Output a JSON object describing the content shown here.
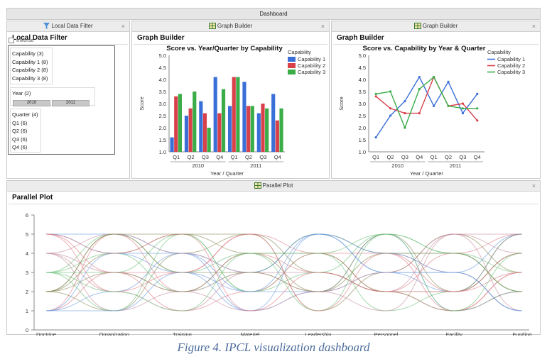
{
  "dashboard": {
    "title": "Dashboard"
  },
  "filter_panel": {
    "header": "Local Data Filter",
    "title": "Local Data Filter",
    "inverse_label": "Inverse",
    "capability_group": [
      "Capability (3)",
      "Capability 1 (8)",
      "Capability 2 (8)",
      "Capability 3 (8)"
    ],
    "year_group": {
      "label": "Year (2)",
      "options": [
        "2010",
        "2011"
      ]
    },
    "quarter_group": [
      "Quarter (4)",
      "Q1 (6)",
      "Q2 (6)",
      "Q3 (6)",
      "Q4 (6)"
    ]
  },
  "close_glyph": "×",
  "graph1": {
    "header": "Graph Builder",
    "title": "Graph Builder"
  },
  "graph2": {
    "header": "Graph Builder",
    "title": "Graph Builder"
  },
  "parallel": {
    "header": "Parallel Plot",
    "title": "Parallel Plot"
  },
  "caption": "Figure 4. IPCL visualization dashboard",
  "colors": {
    "cap1": "#3b6fd8",
    "cap2": "#d8404a",
    "cap3": "#3aac48",
    "header_bg": "#ececec"
  },
  "chart_data": [
    {
      "type": "bar",
      "title": "Score vs. Year/Quarter by Capability",
      "xlabel": "Year / Quarter",
      "ylabel": "Score",
      "ylim": [
        1.0,
        5.0
      ],
      "yticks": [
        "1.0",
        "1.5",
        "2.0",
        "2.5",
        "3.0",
        "3.5",
        "4.0",
        "4.5",
        "5.0"
      ],
      "categories": [
        "Q1",
        "Q2",
        "Q3",
        "Q4",
        "Q1",
        "Q2",
        "Q3",
        "Q4"
      ],
      "groups": [
        "2010",
        "2011"
      ],
      "legend_title": "Capability",
      "legend_position": "right",
      "series": [
        {
          "name": "Capability 1",
          "values": [
            1.6,
            2.5,
            3.1,
            4.1,
            2.9,
            3.9,
            2.6,
            3.4
          ]
        },
        {
          "name": "Capability 2",
          "values": [
            3.3,
            2.8,
            2.6,
            2.6,
            4.1,
            2.9,
            3.0,
            2.3
          ]
        },
        {
          "name": "Capability 3",
          "values": [
            3.4,
            3.5,
            2.0,
            3.6,
            4.1,
            2.9,
            2.8,
            2.8
          ]
        }
      ]
    },
    {
      "type": "line",
      "title": "Score vs. Capability by Year & Quarter",
      "xlabel": "Year / Quarter",
      "ylabel": "Score",
      "ylim": [
        1.0,
        5.0
      ],
      "yticks": [
        "1.0",
        "1.5",
        "2.0",
        "2.5",
        "3.0",
        "3.5",
        "4.0",
        "4.5",
        "5.0"
      ],
      "categories": [
        "Q1",
        "Q2",
        "Q3",
        "Q4",
        "Q1",
        "Q2",
        "Q3",
        "Q4"
      ],
      "groups": [
        "2010",
        "2011"
      ],
      "legend_title": "Capability",
      "legend_position": "right",
      "series": [
        {
          "name": "Capability 1",
          "values": [
            1.6,
            2.5,
            3.1,
            4.1,
            2.9,
            3.9,
            2.6,
            3.4
          ]
        },
        {
          "name": "Capability 2",
          "values": [
            3.3,
            2.8,
            2.6,
            2.6,
            4.1,
            2.9,
            3.0,
            2.3
          ]
        },
        {
          "name": "Capability 3",
          "values": [
            3.4,
            3.5,
            2.0,
            3.6,
            4.1,
            2.9,
            2.8,
            2.8
          ]
        }
      ]
    },
    {
      "type": "parallel",
      "title": "Parallel Plot",
      "axes": [
        "Doctrine",
        "Organization",
        "Training",
        "Materiel",
        "Leadership",
        "Personnel",
        "Facility",
        "Funding"
      ],
      "ylim": [
        0,
        6
      ],
      "yticks": [
        "0",
        "1",
        "2",
        "3",
        "4",
        "5",
        "6"
      ],
      "lines": [
        [
          5,
          4,
          3,
          1,
          2,
          5,
          1,
          2
        ],
        [
          1,
          5,
          2,
          4,
          3,
          2,
          4,
          5
        ],
        [
          3,
          3,
          5,
          2,
          4,
          1,
          2,
          4
        ],
        [
          2,
          1,
          4,
          5,
          1,
          3,
          5,
          3
        ],
        [
          4,
          2,
          1,
          3,
          5,
          4,
          3,
          1
        ],
        [
          5,
          5,
          4,
          2,
          2,
          3,
          2,
          5
        ],
        [
          1,
          3,
          3,
          5,
          4,
          2,
          1,
          3
        ],
        [
          3,
          4,
          2,
          3,
          5,
          4,
          4,
          2
        ],
        [
          2,
          5,
          5,
          4,
          2,
          5,
          2,
          4
        ],
        [
          4,
          1,
          2,
          3,
          3,
          2,
          5,
          1
        ],
        [
          1,
          2,
          4,
          1,
          5,
          3,
          3,
          5
        ],
        [
          5,
          3,
          1,
          2,
          4,
          4,
          1,
          3
        ],
        [
          3,
          5,
          3,
          4,
          1,
          5,
          4,
          2
        ],
        [
          2,
          4,
          5,
          5,
          3,
          2,
          2,
          5
        ],
        [
          4,
          3,
          2,
          1,
          2,
          1,
          5,
          4
        ],
        [
          1,
          4,
          4,
          3,
          5,
          3,
          3,
          1
        ],
        [
          5,
          2,
          3,
          5,
          1,
          4,
          2,
          4
        ],
        [
          3,
          1,
          5,
          2,
          3,
          5,
          4,
          3
        ],
        [
          2,
          3,
          2,
          4,
          4,
          2,
          1,
          2
        ],
        [
          4,
          5,
          4,
          3,
          2,
          3,
          5,
          5
        ],
        [
          1,
          1,
          3,
          2,
          5,
          4,
          3,
          1
        ],
        [
          5,
          4,
          5,
          1,
          3,
          2,
          2,
          3
        ],
        [
          3,
          2,
          1,
          4,
          4,
          5,
          1,
          4
        ],
        [
          2,
          5,
          3,
          3,
          2,
          4,
          4,
          2
        ]
      ]
    }
  ]
}
